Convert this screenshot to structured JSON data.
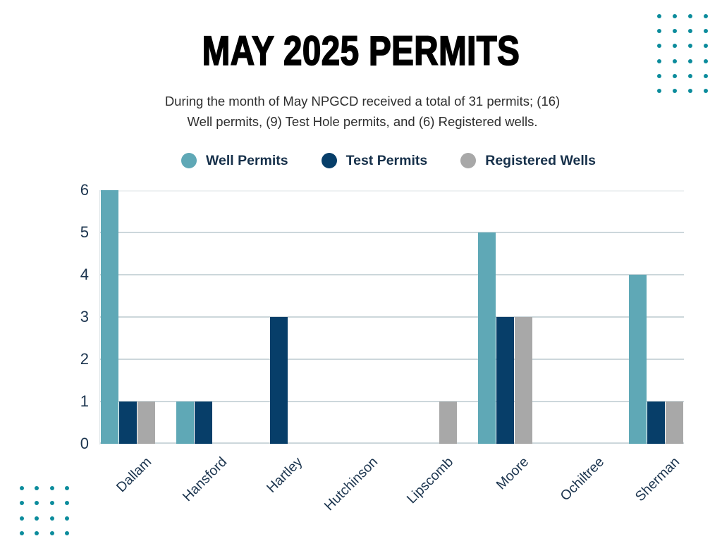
{
  "header": {
    "title": "MAY 2025 PERMITS",
    "subtitle_line1": "During the month of May NPGCD received a total of 31 permits; (16)",
    "subtitle_line2": "Well permits, (9) Test Hole permits, and (6) Registered wells."
  },
  "chart_data": {
    "type": "bar",
    "title": "MAY 2025 PERMITS",
    "categories": [
      "Dallam",
      "Hansford",
      "Hartley",
      "Hutchinson",
      "Lipscomb",
      "Moore",
      "Ochiltree",
      "Sherman"
    ],
    "series": [
      {
        "name": "Well Permits",
        "color": "#5FA8B6",
        "values": [
          6,
          1,
          0,
          0,
          0,
          5,
          0,
          4
        ]
      },
      {
        "name": "Test Permits",
        "color": "#073E69",
        "values": [
          1,
          1,
          3,
          0,
          0,
          3,
          0,
          1
        ]
      },
      {
        "name": "Registered Wells",
        "color": "#A8A8A8",
        "values": [
          1,
          0,
          0,
          0,
          1,
          3,
          0,
          1
        ]
      }
    ],
    "ylim": [
      0,
      6
    ],
    "yticks": [
      0,
      1,
      2,
      3,
      4,
      5,
      6
    ],
    "grid": true,
    "legend_position": "top",
    "xlabel": "",
    "ylabel": ""
  },
  "colors": {
    "accent_teal": "#5FA8B6",
    "accent_navy": "#073E69",
    "accent_gray": "#A8A8A8",
    "dot_decoration": "#0C8C9C",
    "axis_text": "#1B344E",
    "gridline": "#CCD7DB",
    "gridline_top": "#EEF1F2"
  }
}
